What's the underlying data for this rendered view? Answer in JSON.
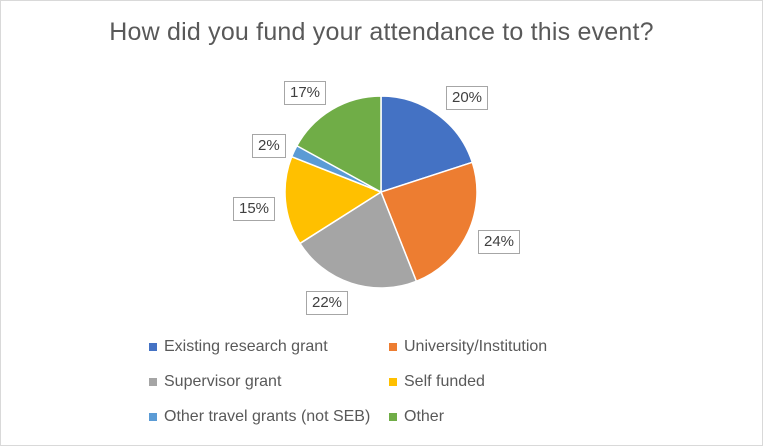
{
  "chart_data": {
    "type": "pie",
    "title": "How did you fund your attendance to this event?",
    "categories": [
      "Existing research grant",
      "University/Institution",
      "Supervisor grant",
      "Self funded",
      "Other travel grants (not SEB)",
      "Other"
    ],
    "values": [
      20,
      24,
      22,
      15,
      2,
      17
    ],
    "data_labels": [
      "20%",
      "24%",
      "22%",
      "15%",
      "2%",
      "17%"
    ],
    "colors": [
      "#4472c4",
      "#ed7d31",
      "#a5a5a5",
      "#ffc000",
      "#5b9bd5",
      "#70ad47"
    ],
    "legend_position": "bottom"
  }
}
